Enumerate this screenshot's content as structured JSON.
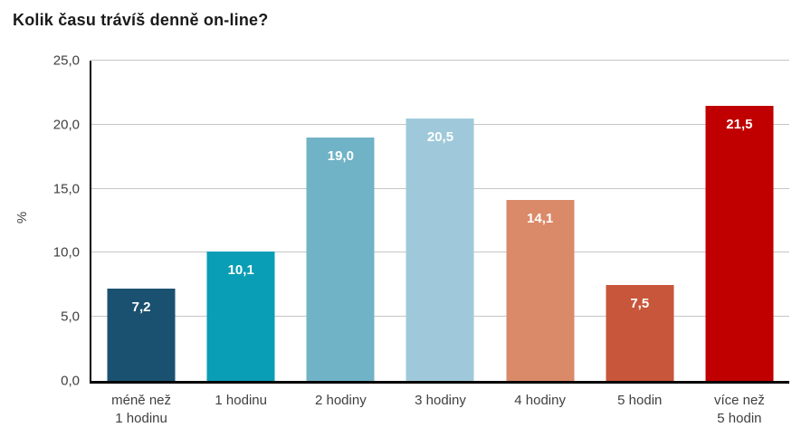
{
  "title": "Kolik času trávíš denně on-line?",
  "chart_data": {
    "type": "bar",
    "title": "Kolik času trávíš denně on-line?",
    "categories": [
      "méně než\n1 hodinu",
      "1 hodinu",
      "2 hodiny",
      "3 hodiny",
      "4 hodiny",
      "5 hodin",
      "více než\n5 hodin"
    ],
    "values": [
      7.2,
      10.1,
      19.0,
      20.5,
      14.1,
      7.5,
      21.5
    ],
    "value_labels": [
      "7,2",
      "10,1",
      "19,0",
      "20,5",
      "14,1",
      "7,5",
      "21,5"
    ],
    "bar_colors": [
      "#1b5170",
      "#0a9db6",
      "#70b3c7",
      "#9fc9da",
      "#da8a69",
      "#c8563a",
      "#c00000"
    ],
    "xlabel": "",
    "ylabel": "%",
    "ylim": [
      0,
      25
    ],
    "ytick_values": [
      0,
      5,
      10,
      15,
      20,
      25
    ],
    "ytick_labels": [
      "0,0",
      "5,0",
      "10,0",
      "15,0",
      "20,0",
      "25,0"
    ],
    "grid": true,
    "legend": "none",
    "value_label_position": "inside-top",
    "value_label_color": "#ffffff"
  },
  "colors": {
    "background": "#ffffff",
    "gridline": "#c6c6c6",
    "axis": "#000000",
    "tick_text": "#404040",
    "title_text": "#1a1a1a"
  }
}
